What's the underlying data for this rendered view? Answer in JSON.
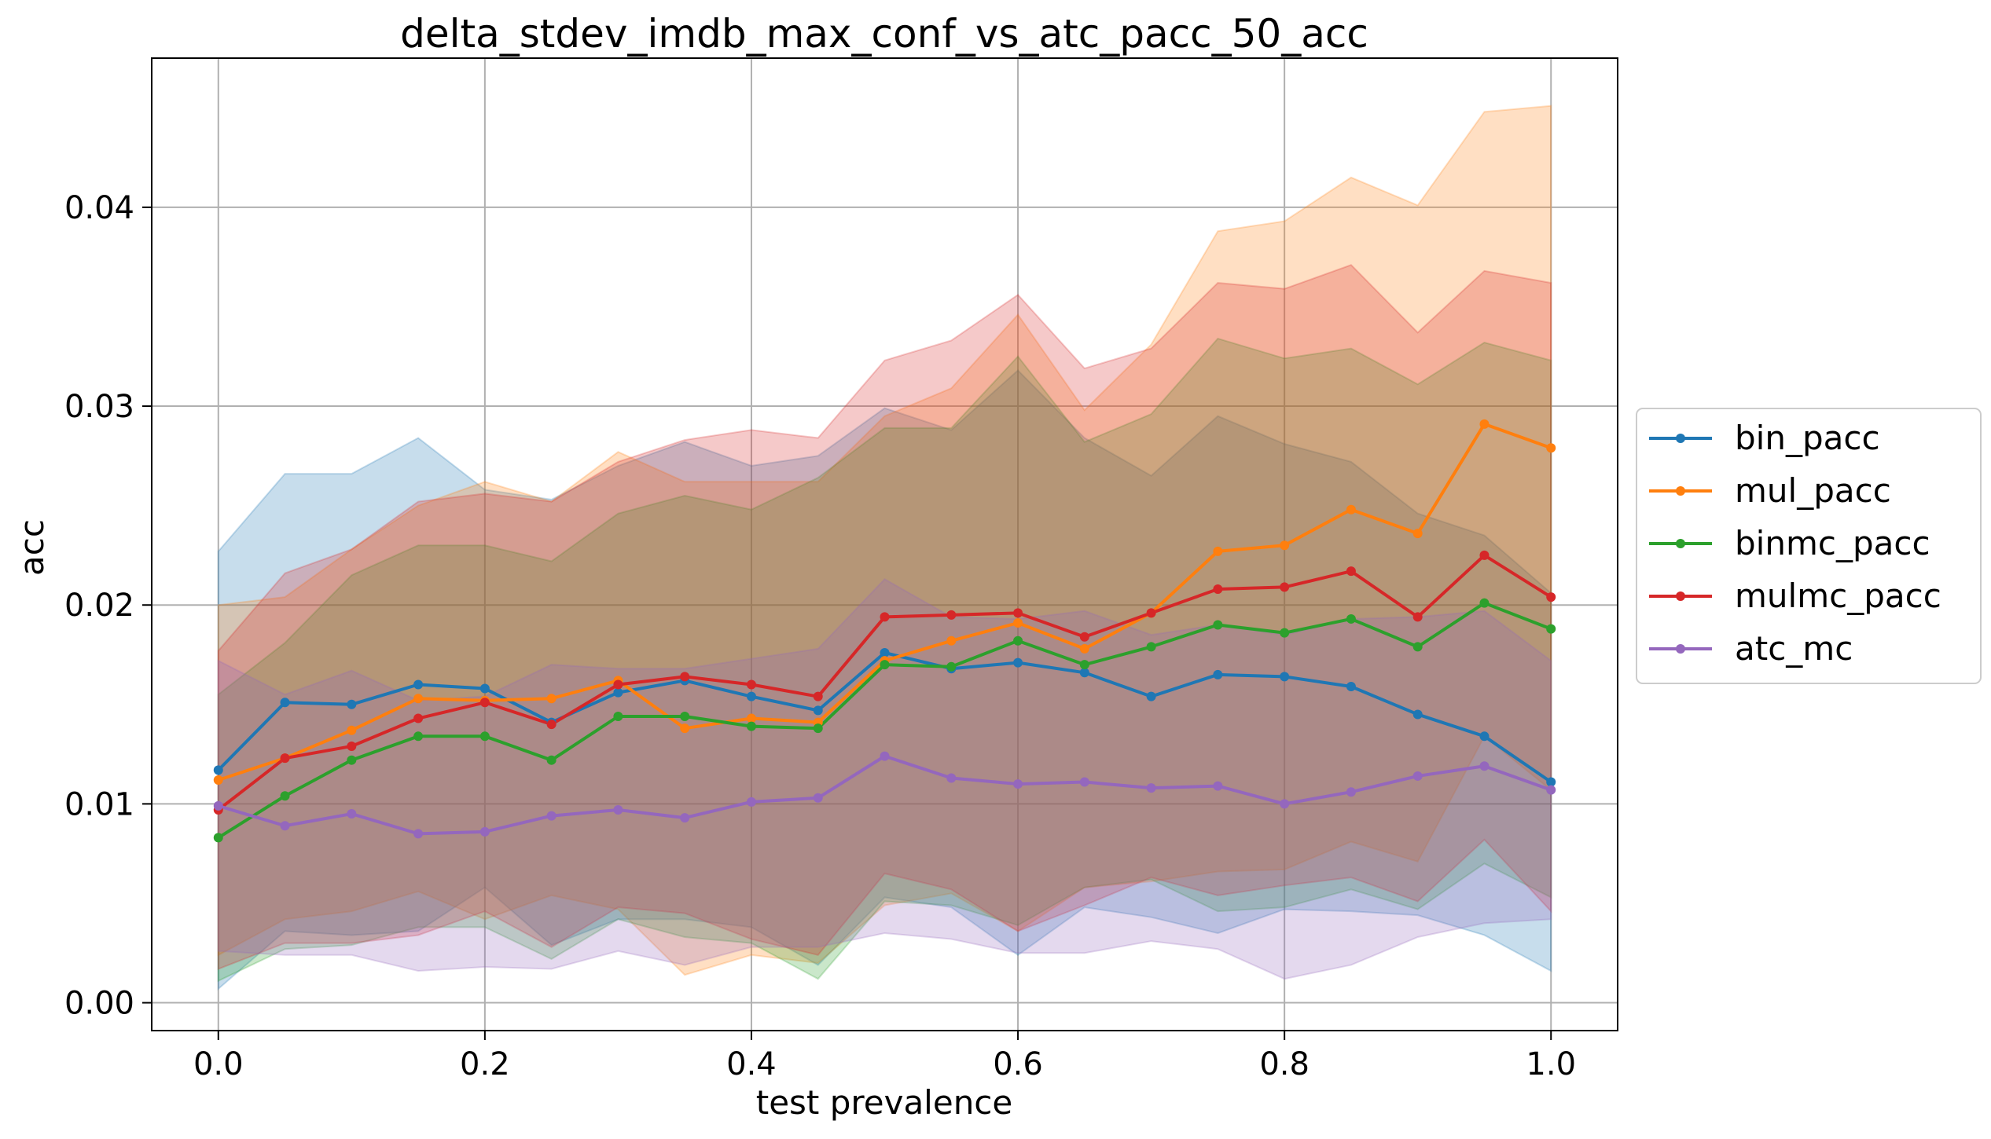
{
  "chart_data": {
    "type": "line",
    "title": "delta_stdev_imdb_max_conf_vs_atc_pacc_50_acc",
    "xlabel": "test prevalence",
    "ylabel": "acc",
    "xlim": [
      -0.05,
      1.05
    ],
    "ylim": [
      -0.0014,
      0.0475
    ],
    "grid": true,
    "legend_position": "right",
    "xticks": [
      0.0,
      0.2,
      0.4,
      0.6,
      0.8,
      1.0
    ],
    "xtick_labels": [
      "0.0",
      "0.2",
      "0.4",
      "0.6",
      "0.8",
      "1.0"
    ],
    "yticks": [
      0.0,
      0.01,
      0.02,
      0.03,
      0.04
    ],
    "ytick_labels": [
      "0.00",
      "0.01",
      "0.02",
      "0.03",
      "0.04"
    ],
    "x": [
      0.0,
      0.05,
      0.1,
      0.15,
      0.2,
      0.25,
      0.3,
      0.35,
      0.4,
      0.45,
      0.5,
      0.55,
      0.6,
      0.65,
      0.7,
      0.75,
      0.8,
      0.85,
      0.9,
      0.95,
      1.0
    ],
    "series": [
      {
        "name": "bin_pacc",
        "color": "#1f77b4",
        "values": [
          0.0117,
          0.0151,
          0.015,
          0.016,
          0.0158,
          0.0141,
          0.0156,
          0.0162,
          0.0154,
          0.0147,
          0.0176,
          0.0168,
          0.0171,
          0.0166,
          0.0154,
          0.0165,
          0.0164,
          0.0159,
          0.0145,
          0.0134,
          0.0111
        ],
        "upper": [
          0.0227,
          0.0266,
          0.0266,
          0.0284,
          0.0258,
          0.0253,
          0.027,
          0.0282,
          0.027,
          0.0275,
          0.0299,
          0.0288,
          0.0318,
          0.0284,
          0.0265,
          0.0295,
          0.0281,
          0.0272,
          0.0246,
          0.0235,
          0.0206
        ],
        "lower": [
          0.0007,
          0.0036,
          0.0034,
          0.0036,
          0.0058,
          0.0029,
          0.0042,
          0.0042,
          0.0038,
          0.0019,
          0.0053,
          0.0048,
          0.0024,
          0.0048,
          0.0043,
          0.0035,
          0.0047,
          0.0046,
          0.0044,
          0.0034,
          0.0016
        ]
      },
      {
        "name": "mul_pacc",
        "color": "#ff7f0e",
        "values": [
          0.0112,
          0.0123,
          0.0137,
          0.0153,
          0.0152,
          0.0153,
          0.0162,
          0.0138,
          0.0143,
          0.0141,
          0.0172,
          0.0182,
          0.0191,
          0.0178,
          0.0196,
          0.0227,
          0.023,
          0.0248,
          0.0236,
          0.0291,
          0.0279
        ],
        "upper": [
          0.02,
          0.0204,
          0.0228,
          0.025,
          0.0262,
          0.0252,
          0.0277,
          0.0262,
          0.0262,
          0.0262,
          0.0295,
          0.0309,
          0.0346,
          0.0298,
          0.0331,
          0.0388,
          0.0393,
          0.0415,
          0.0401,
          0.0448,
          0.0451
        ],
        "lower": [
          0.0024,
          0.0042,
          0.0046,
          0.0056,
          0.0042,
          0.0054,
          0.0047,
          0.0014,
          0.0024,
          0.002,
          0.0049,
          0.0055,
          0.0036,
          0.0058,
          0.0061,
          0.0066,
          0.0067,
          0.0081,
          0.0071,
          0.0134,
          0.0107
        ]
      },
      {
        "name": "binmc_pacc",
        "color": "#2ca02c",
        "values": [
          0.0083,
          0.0104,
          0.0122,
          0.0134,
          0.0134,
          0.0122,
          0.0144,
          0.0144,
          0.0139,
          0.0138,
          0.017,
          0.0169,
          0.0182,
          0.017,
          0.0179,
          0.019,
          0.0186,
          0.0193,
          0.0179,
          0.0201,
          0.0188
        ],
        "upper": [
          0.0155,
          0.0181,
          0.0215,
          0.023,
          0.023,
          0.0222,
          0.0246,
          0.0255,
          0.0248,
          0.0264,
          0.0289,
          0.0289,
          0.0325,
          0.0282,
          0.0296,
          0.0334,
          0.0324,
          0.0329,
          0.0311,
          0.0332,
          0.0323
        ],
        "lower": [
          0.0011,
          0.0027,
          0.0029,
          0.0038,
          0.0038,
          0.0022,
          0.0042,
          0.0033,
          0.003,
          0.0012,
          0.0051,
          0.0049,
          0.0039,
          0.0058,
          0.0062,
          0.0046,
          0.0048,
          0.0057,
          0.0047,
          0.007,
          0.0053
        ]
      },
      {
        "name": "mulmc_pacc",
        "color": "#d62728",
        "values": [
          0.0097,
          0.0123,
          0.0129,
          0.0143,
          0.0151,
          0.014,
          0.016,
          0.0164,
          0.016,
          0.0154,
          0.0194,
          0.0195,
          0.0196,
          0.0184,
          0.0196,
          0.0208,
          0.0209,
          0.0217,
          0.0194,
          0.0225,
          0.0204
        ],
        "upper": [
          0.0177,
          0.0216,
          0.0228,
          0.0252,
          0.0256,
          0.0252,
          0.0272,
          0.0283,
          0.0288,
          0.0284,
          0.0323,
          0.0333,
          0.0356,
          0.0319,
          0.0329,
          0.0362,
          0.0359,
          0.0371,
          0.0337,
          0.0368,
          0.0362
        ],
        "lower": [
          0.0017,
          0.003,
          0.003,
          0.0034,
          0.0046,
          0.0028,
          0.0048,
          0.0045,
          0.0032,
          0.0024,
          0.0065,
          0.0057,
          0.0036,
          0.0049,
          0.0063,
          0.0054,
          0.0059,
          0.0063,
          0.0051,
          0.0082,
          0.0046
        ]
      },
      {
        "name": "atc_mc",
        "color": "#9467bd",
        "values": [
          0.0099,
          0.0089,
          0.0095,
          0.0085,
          0.0086,
          0.0094,
          0.0097,
          0.0093,
          0.0101,
          0.0103,
          0.0124,
          0.0113,
          0.011,
          0.0111,
          0.0108,
          0.0109,
          0.01,
          0.0106,
          0.0114,
          0.0119,
          0.0107
        ],
        "upper": [
          0.0172,
          0.0155,
          0.0167,
          0.0152,
          0.0154,
          0.017,
          0.0168,
          0.0168,
          0.0173,
          0.0178,
          0.0213,
          0.0194,
          0.0193,
          0.0197,
          0.0185,
          0.019,
          0.0185,
          0.0193,
          0.0194,
          0.0197,
          0.0172
        ],
        "lower": [
          0.0026,
          0.0024,
          0.0024,
          0.0016,
          0.0018,
          0.0017,
          0.0026,
          0.0019,
          0.0028,
          0.0028,
          0.0035,
          0.0032,
          0.0025,
          0.0025,
          0.0031,
          0.0027,
          0.0012,
          0.0019,
          0.0033,
          0.004,
          0.0042
        ]
      }
    ]
  }
}
